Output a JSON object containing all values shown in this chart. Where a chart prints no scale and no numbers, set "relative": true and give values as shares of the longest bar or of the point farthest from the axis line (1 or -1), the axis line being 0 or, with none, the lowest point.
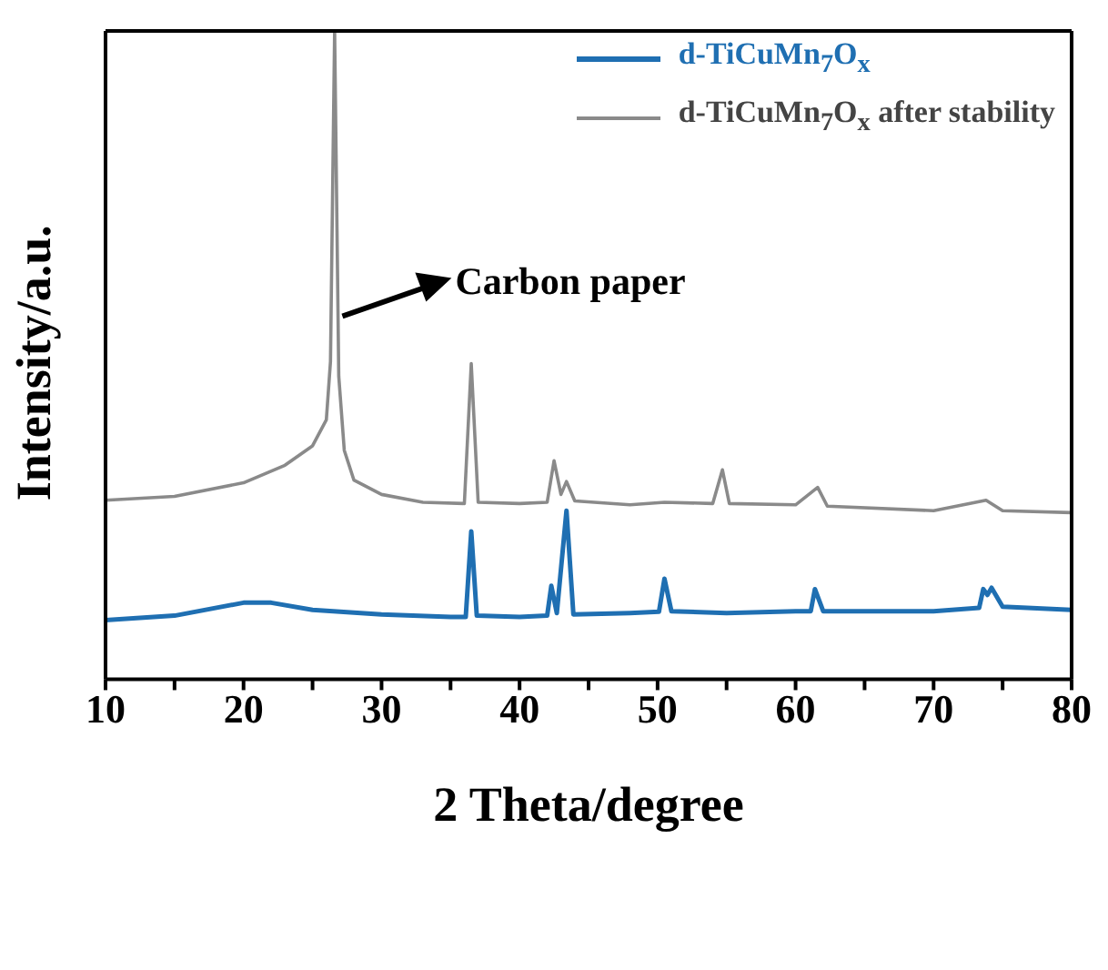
{
  "chart_data": {
    "type": "line",
    "relative": true,
    "xlabel": "2 Theta/degree",
    "ylabel": "Intensity/a.u.",
    "xlim": [
      10,
      80
    ],
    "xticks": [
      10,
      {
        "value": 15,
        "label": null
      },
      20,
      {
        "value": 25,
        "label": null
      },
      30,
      {
        "value": 35,
        "label": null
      },
      40,
      {
        "value": 45,
        "label": null
      },
      50,
      {
        "value": 55,
        "label": null
      },
      60,
      {
        "value": 65,
        "label": null
      },
      70,
      {
        "value": 75,
        "label": null
      },
      80
    ],
    "legend": "top right",
    "marker": "none",
    "line_style": "solid",
    "annotations": [
      {
        "text": "Carbon paper",
        "x": 26.9,
        "y": 0.56
      }
    ],
    "series": [
      {
        "name": "d-TiCuMn$_{7}$O$_{x}$",
        "color": "#1f6fb2",
        "x": [
          10,
          15,
          20,
          22,
          25,
          30,
          35,
          36.1,
          36.5,
          36.9,
          40,
          42,
          42.3,
          42.7,
          43.4,
          43.9,
          48,
          50.1,
          50.5,
          51,
          55,
          60,
          61.1,
          61.4,
          62,
          70,
          73.3,
          73.6,
          73.9,
          74.2,
          75,
          80
        ],
        "values": [
          0.091,
          0.098,
          0.118,
          0.118,
          0.107,
          0.1,
          0.096,
          0.096,
          0.228,
          0.098,
          0.096,
          0.098,
          0.144,
          0.102,
          0.26,
          0.1,
          0.102,
          0.104,
          0.155,
          0.105,
          0.102,
          0.105,
          0.105,
          0.139,
          0.105,
          0.105,
          0.11,
          0.139,
          0.13,
          0.141,
          0.112,
          0.107
        ]
      },
      {
        "name": "d-TiCuMn$_{7}$O$_{x}$ after stability",
        "color": "#8a8a8a",
        "x": [
          10,
          15,
          20,
          23,
          25,
          26,
          26.3,
          26.6,
          26.9,
          27.3,
          28,
          30,
          33,
          36,
          36.5,
          37,
          40,
          42,
          42.5,
          43,
          43.4,
          44,
          48,
          50.5,
          54,
          54.7,
          55.2,
          60,
          61.6,
          62.3,
          70,
          73.8,
          75,
          80
        ],
        "values": [
          0.276,
          0.282,
          0.303,
          0.33,
          0.36,
          0.4,
          0.49,
          1,
          0.467,
          0.353,
          0.307,
          0.285,
          0.273,
          0.271,
          0.487,
          0.273,
          0.271,
          0.273,
          0.337,
          0.285,
          0.305,
          0.275,
          0.269,
          0.273,
          0.271,
          0.323,
          0.271,
          0.269,
          0.296,
          0.267,
          0.26,
          0.276,
          0.26,
          0.257
        ]
      }
    ]
  }
}
